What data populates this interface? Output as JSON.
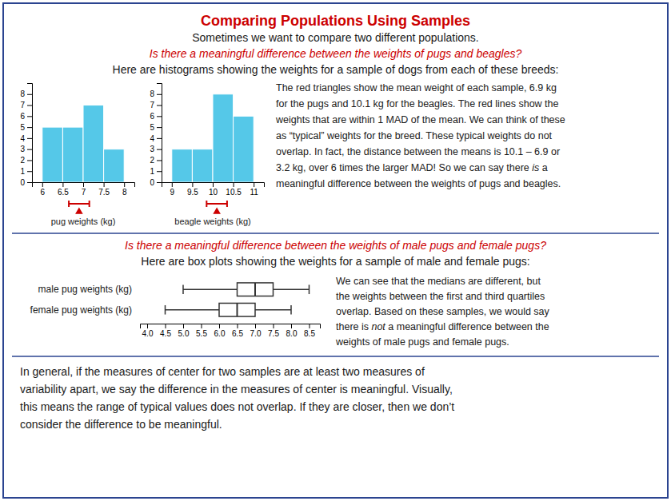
{
  "chart_data": [
    {
      "type": "histogram",
      "title": "Comparing Populations Using Samples",
      "subtitle": "Sometimes we want to compare two different populations.",
      "annotations": [
        "Is there a meaningful difference between the weights of pugs and beagles?",
        "Here are histograms showing the weights for a sample of dogs from each of these breeds:",
        [
          "The red triangles show the mean weight of each sample, 6.9 kg",
          "for the pugs and 10.1 kg for the beagles. The red lines show the",
          "weights that are within 1 MAD of the mean. We can think of these",
          "as “typical” weights for the breed. These typical weights do not",
          "overlap. In fact, the distance between the means is 10.1 – 6.9 or",
          [
            "3.2 kg, over 6 times the larger MAD! So we can say there ",
            "is",
            " a"
          ],
          "meaningful difference between the weights of pugs and beagles."
        ]
      ],
      "xlabel": "pug weights (kg)",
      "bins": [
        6,
        6.5,
        7,
        7.5,
        8
      ],
      "values": [
        5,
        5,
        7,
        3
      ],
      "mean": 6.9,
      "mad": 0.25,
      "color": "#55C8E8",
      "xlim": [
        5.75,
        8.25
      ],
      "xticks": [
        6,
        6.5,
        7,
        7.5,
        8
      ],
      "ylim": [
        0,
        9
      ],
      "yticks": [
        0,
        1,
        2,
        3,
        4,
        5,
        6,
        7,
        8
      ],
      "grid": false
    },
    {
      "type": "histogram",
      "xlabel": "beagle weights (kg)",
      "bins": [
        9,
        9.5,
        10,
        10.5,
        11
      ],
      "values": [
        3,
        3,
        8,
        6
      ],
      "mean": 10.1,
      "mad": 0.25,
      "color": "#55C8E8",
      "xlim": [
        8.75,
        11.25
      ],
      "xticks": [
        9,
        9.5,
        10,
        10.5,
        11
      ],
      "ylim": [
        0,
        9
      ],
      "yticks": [
        0,
        1,
        2,
        3,
        4,
        5,
        6,
        7,
        8
      ],
      "grid": false
    },
    {
      "type": "box",
      "title": "Is there a meaningful difference between the weights of male pugs and female pugs?",
      "subtitle": "Here are box plots showing the weights for a sample of male and female pugs:",
      "annotations": [
        [
          "We can see that the medians are different, but",
          "the weights between the first and third quartiles",
          "overlap. Based on these samples, we would say",
          [
            "there is ",
            "not",
            " a meaningful difference between the"
          ],
          "weights of male pugs and female pugs."
        ],
        [
          "In general, if the measures of center for two samples are at least two measures of",
          "variability apart, we say the difference in the measures of center is meaningful. Visually,",
          "this means the range of typical values does not overlap. If they are closer, then we don’t",
          "consider the difference to be meaningful."
        ]
      ],
      "categories": [
        "male pug weights (kg)",
        "female pug weights (kg)"
      ],
      "values": [
        {
          "min": 5.0,
          "q1": 6.5,
          "median": 7.0,
          "q3": 7.5,
          "max": 8.5
        },
        {
          "min": 4.5,
          "q1": 6.0,
          "median": 6.5,
          "q3": 7.0,
          "max": 8.0
        }
      ],
      "xlim": [
        3.8,
        8.8
      ],
      "xticks": [
        {
          "value": 4,
          "label": "4.0"
        },
        {
          "value": 4.5,
          "label": "4.5"
        },
        {
          "value": 5,
          "label": "5.0"
        },
        {
          "value": 5.5,
          "label": "5.5"
        },
        {
          "value": 6,
          "label": "6.0"
        },
        {
          "value": 6.5,
          "label": "6.5"
        },
        {
          "value": 7,
          "label": "7.0"
        },
        {
          "value": 7.5,
          "label": "7.5"
        },
        {
          "value": 8,
          "label": "8.0"
        },
        {
          "value": 8.5,
          "label": "8.5"
        }
      ],
      "grid": false
    }
  ]
}
